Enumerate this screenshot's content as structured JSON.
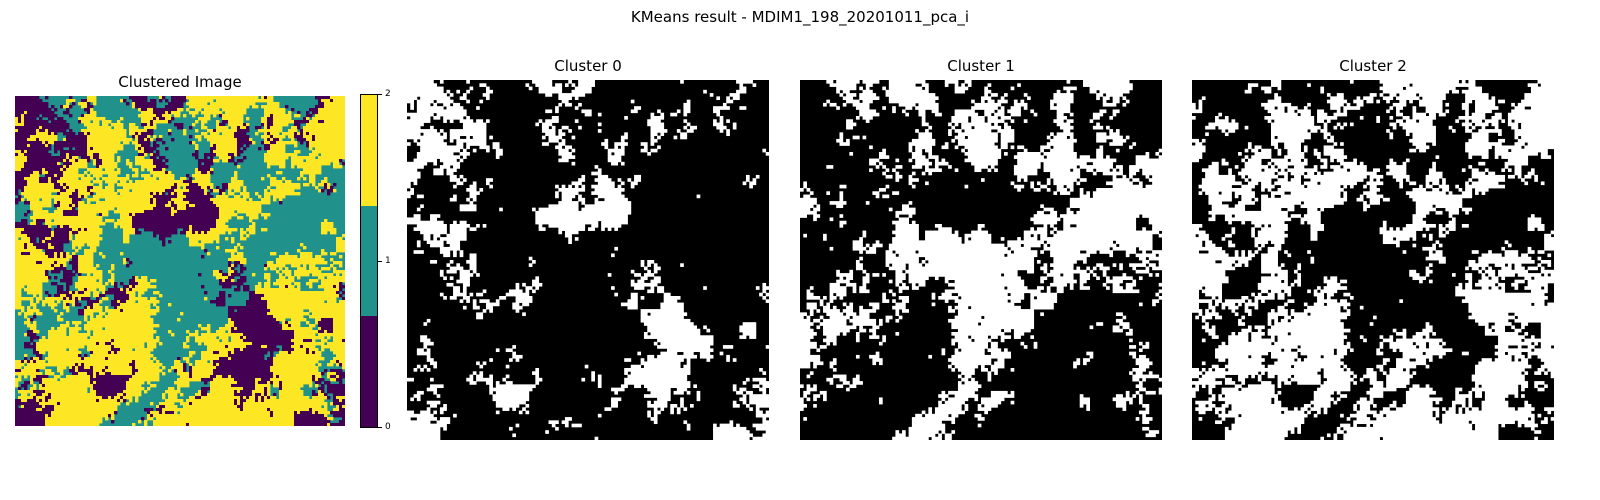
{
  "figure": {
    "suptitle": "KMeans result - MDIM1_198_20201011_pca_i"
  },
  "chart_data": [
    {
      "type": "heatmap",
      "title": "Clustered Image",
      "description_values": "categorical label image with 3 clusters",
      "colormap": [
        "#440154",
        "#21918c",
        "#fde725"
      ],
      "colorbar": {
        "ticks": [
          0,
          1,
          2
        ],
        "vmin": 0,
        "vmax": 2
      },
      "axis": "off"
    },
    {
      "type": "heatmap",
      "title": "Cluster 0",
      "colors": [
        "#000000",
        "#ffffff"
      ],
      "axis": "off"
    },
    {
      "type": "heatmap",
      "title": "Cluster 1",
      "colors": [
        "#000000",
        "#ffffff"
      ],
      "axis": "off"
    },
    {
      "type": "heatmap",
      "title": "Cluster 2",
      "colors": [
        "#000000",
        "#ffffff"
      ],
      "axis": "off"
    }
  ]
}
